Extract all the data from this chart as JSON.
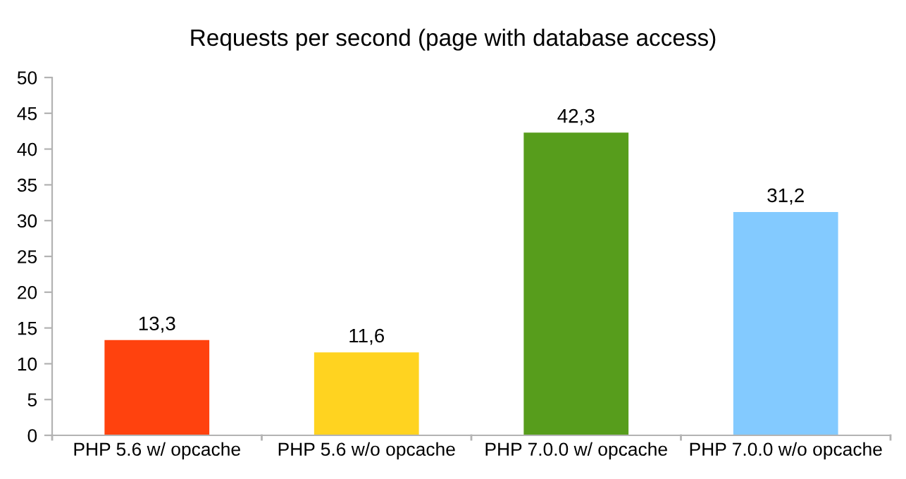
{
  "chart_data": {
    "type": "bar",
    "title": "Requests per second (page with database access)",
    "categories": [
      "PHP 5.6 w/ opcache",
      "PHP 5.6 w/o opcache",
      "PHP 7.0.0 w/ opcache",
      "PHP 7.0.0 w/o opcache"
    ],
    "values": [
      13.3,
      11.6,
      42.3,
      31.2
    ],
    "colors": [
      "#ff420e",
      "#ffd320",
      "#579d1c",
      "#83caff"
    ],
    "value_labels": [
      "13,3",
      "11,6",
      "42,3",
      "31,2"
    ],
    "ylim": [
      0,
      50
    ],
    "yticks": [
      0,
      5,
      10,
      15,
      20,
      25,
      30,
      35,
      40,
      45,
      50
    ],
    "grid": false,
    "legend": false
  }
}
